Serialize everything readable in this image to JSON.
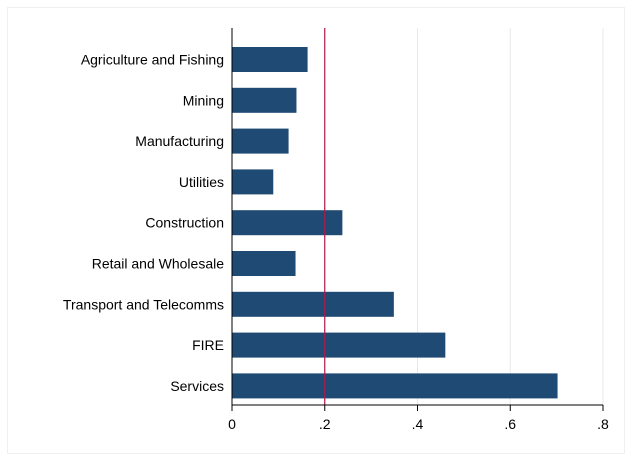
{
  "chart_data": {
    "type": "bar",
    "orientation": "horizontal",
    "categories": [
      "Agriculture and Fishing",
      "Mining",
      "Manufacturing",
      "Utilities",
      "Construction",
      "Retail and Wholesale",
      "Transport and Telecomms",
      "FIRE",
      "Services"
    ],
    "values": [
      0.163,
      0.139,
      0.122,
      0.089,
      0.238,
      0.137,
      0.349,
      0.46,
      0.702
    ],
    "x_ticks": [
      0,
      0.2,
      0.4,
      0.6,
      0.8
    ],
    "x_tick_labels": [
      "0",
      ".2",
      ".4",
      ".6",
      ".8"
    ],
    "xlim": [
      0,
      0.8
    ],
    "reference_line": 0.2,
    "grid": "vertical",
    "title": "",
    "xlabel": "",
    "ylabel": ""
  },
  "colors": {
    "bar": "#1f4a73",
    "reference_line": "#b0174b",
    "grid": "#e6e8ec",
    "axis": "#000000"
  }
}
